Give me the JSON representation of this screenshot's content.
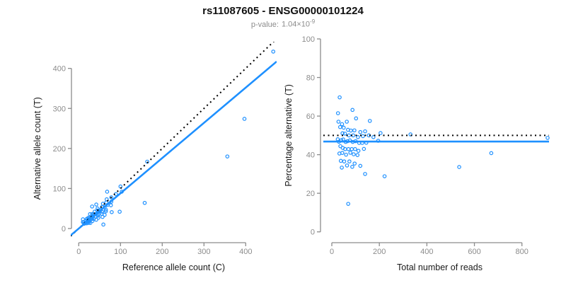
{
  "header": {
    "title": "rs11087605 - ENSG00000101224",
    "p_label": "p-value:",
    "p_base": "1.04×10",
    "p_exp": "-9"
  },
  "colors": {
    "points": "#1E90FF",
    "fit_line": "#1E90FF",
    "identity_line": "#000000",
    "axis": "#8c8c8c",
    "tick_labels": "#8c8c8c",
    "axis_titles": "#1a1a1a",
    "title": "#111111",
    "subtitle": "#8c8c8c",
    "background": "#ffffff"
  },
  "chart_data": [
    {
      "type": "scatter",
      "xlabel": "Reference allele count (C)",
      "ylabel": "Alternative allele count (T)",
      "xlim": [
        -19,
        474
      ],
      "ylim": [
        -18,
        465
      ],
      "xticks": [
        0,
        100,
        200,
        300,
        400
      ],
      "yticks": [
        0,
        100,
        200,
        300,
        400
      ],
      "grid": false,
      "x": [
        10,
        10,
        32,
        12,
        19,
        27,
        42,
        68,
        16,
        23,
        32,
        38,
        45,
        58,
        67,
        27,
        36,
        45,
        56,
        66,
        78,
        89,
        103,
        164,
        16,
        21,
        25,
        31,
        35,
        40,
        47,
        53,
        62,
        69,
        78,
        20,
        26,
        32,
        40,
        48,
        56,
        65,
        77,
        19,
        26,
        36,
        46,
        55,
        65,
        24,
        33,
        47,
        62,
        28,
        42,
        57,
        79,
        59,
        158,
        98,
        356,
        397,
        466,
        13,
        22,
        100
      ],
      "y": [
        23,
        16,
        55,
        16,
        24,
        36,
        60,
        92,
        19,
        27,
        36,
        42,
        50,
        62,
        73,
        28,
        36,
        45,
        54,
        65,
        78,
        86,
        92,
        167,
        14,
        19,
        23,
        27,
        31,
        36,
        41,
        47,
        53,
        59,
        67,
        16,
        20,
        24,
        30,
        36,
        42,
        47,
        58,
        13,
        18,
        24,
        32,
        37,
        43,
        14,
        19,
        27,
        34,
        14,
        22,
        29,
        41,
        10,
        64,
        42,
        180,
        274,
        442,
        12,
        23,
        105
      ],
      "lines": [
        {
          "name": "identity",
          "style": "dotted",
          "color": "#000000",
          "slope": 1,
          "intercept": 0
        },
        {
          "name": "fit",
          "style": "solid",
          "color": "#1E90FF",
          "slope": 0.88,
          "intercept": 0
        }
      ]
    },
    {
      "type": "scatter",
      "xlabel": "Total number of reads",
      "ylabel": "Percentage alternative (T)",
      "xlim": [
        -36,
        944
      ],
      "ylim": [
        0,
        100
      ],
      "xticks": [
        0,
        200,
        400,
        600,
        800
      ],
      "yticks": [
        0,
        20,
        40,
        60,
        80,
        100
      ],
      "grid": false,
      "x": [
        33,
        26,
        87,
        28,
        43,
        63,
        102,
        160,
        35,
        50,
        68,
        80,
        95,
        120,
        140,
        55,
        72,
        90,
        110,
        131,
        156,
        175,
        195,
        331,
        30,
        40,
        48,
        58,
        66,
        76,
        88,
        100,
        115,
        128,
        145,
        36,
        46,
        56,
        70,
        84,
        98,
        112,
        135,
        32,
        44,
        60,
        78,
        92,
        108,
        38,
        52,
        74,
        96,
        42,
        64,
        86,
        120,
        69,
        222,
        140,
        536,
        671,
        908,
        25,
        45,
        205
      ],
      "y": [
        69.7,
        61.5,
        63.2,
        57.1,
        55.8,
        57.1,
        58.8,
        57.5,
        54.3,
        54,
        52.9,
        52.5,
        52.6,
        51.7,
        52.1,
        50.9,
        50,
        50,
        49.1,
        49.6,
        50,
        49.1,
        47.2,
        50.5,
        46.7,
        47.5,
        47.9,
        46.6,
        47,
        47.4,
        46.6,
        47,
        46.1,
        46.1,
        46.2,
        44.4,
        43.5,
        42.9,
        42.9,
        42.9,
        42.9,
        42,
        43,
        40.6,
        40.9,
        40,
        41,
        40.2,
        39.8,
        36.8,
        36.5,
        36.5,
        35.4,
        33.3,
        34.4,
        33.7,
        34.2,
        14.5,
        28.8,
        30,
        33.6,
        40.8,
        48.7,
        48,
        51.1,
        51.2
      ],
      "lines": [
        {
          "name": "expected-50pct",
          "style": "dotted",
          "color": "#000000",
          "y": 50
        },
        {
          "name": "fitted-pct",
          "style": "solid",
          "color": "#1E90FF",
          "y": 46.8
        }
      ]
    }
  ]
}
